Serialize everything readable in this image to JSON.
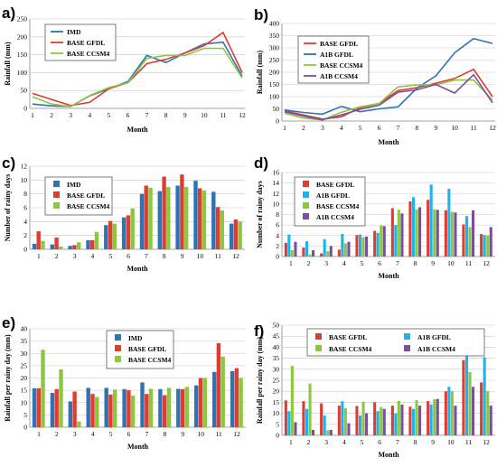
{
  "chart_data": [
    {
      "panel": "a)",
      "type": "line",
      "xlabel": "Month",
      "ylabel": "Rainfall (mm)",
      "x": [
        1,
        2,
        3,
        4,
        5,
        6,
        7,
        8,
        9,
        10,
        11,
        12
      ],
      "ylim": [
        0,
        250
      ],
      "yticks": [
        0,
        50,
        100,
        150,
        200,
        250
      ],
      "grid": true,
      "legend": "top-left",
      "series": [
        {
          "name": "IMD",
          "color": "#2e74b5",
          "values": [
            12,
            7,
            5,
            35,
            55,
            75,
            148,
            128,
            155,
            180,
            185,
            90
          ]
        },
        {
          "name": "BASE GFDL",
          "color": "#e03c31",
          "values": [
            42,
            25,
            8,
            17,
            55,
            72,
            125,
            137,
            155,
            175,
            212,
            100
          ]
        },
        {
          "name": "BASE CCSM4",
          "color": "#8dc63f",
          "values": [
            32,
            12,
            5,
            36,
            58,
            72,
            140,
            148,
            148,
            168,
            168,
            85
          ]
        }
      ]
    },
    {
      "panel": "b)",
      "type": "line",
      "xlabel": "Month",
      "ylabel": "Rainfall (mm)",
      "x": [
        1,
        2,
        3,
        4,
        5,
        6,
        7,
        8,
        9,
        10,
        11,
        12
      ],
      "ylim": [
        0,
        400
      ],
      "yticks": [
        0,
        50,
        100,
        150,
        200,
        250,
        300,
        350,
        400
      ],
      "grid": true,
      "legend": "top-left",
      "series": [
        {
          "name": "BASE GFDL",
          "color": "#e03c31",
          "values": [
            42,
            25,
            8,
            17,
            55,
            72,
            125,
            137,
            155,
            175,
            212,
            100
          ]
        },
        {
          "name": "A1B GFDL",
          "color": "#2e74b5",
          "values": [
            45,
            35,
            28,
            60,
            38,
            50,
            58,
            135,
            185,
            280,
            338,
            318
          ]
        },
        {
          "name": "BASE CCSM4",
          "color": "#8dc63f",
          "values": [
            32,
            12,
            5,
            36,
            58,
            72,
            140,
            148,
            148,
            168,
            168,
            85
          ]
        },
        {
          "name": "A1B CCSM4",
          "color": "#7b4fa0",
          "values": [
            38,
            20,
            5,
            25,
            48,
            65,
            118,
            128,
            150,
            115,
            190,
            75
          ]
        }
      ]
    },
    {
      "panel": "c)",
      "type": "bar",
      "xlabel": "Month",
      "ylabel": "Number of rainy days",
      "categories": [
        "1",
        "2",
        "3",
        "4",
        "5",
        "6",
        "7",
        "8",
        "9",
        "10",
        "11",
        "12"
      ],
      "ylim": [
        0,
        12
      ],
      "yticks": [
        0,
        2,
        4,
        6,
        8,
        10,
        12
      ],
      "grid": true,
      "legend": "top-left",
      "series": [
        {
          "name": "IMD",
          "color": "#2e74b5",
          "values": [
            0.8,
            0.7,
            0.5,
            1.3,
            3.5,
            4.6,
            8.0,
            8.4,
            9.2,
            9.9,
            8.3,
            3.7
          ]
        },
        {
          "name": "BASE GFDL",
          "color": "#e03c31",
          "values": [
            2.6,
            1.7,
            0.6,
            1.3,
            4.1,
            4.9,
            9.2,
            10.5,
            10.8,
            8.8,
            6.1,
            4.3
          ]
        },
        {
          "name": "BASE CCSM4",
          "color": "#8dc63f",
          "values": [
            1.2,
            0.4,
            1.0,
            2.5,
            3.7,
            5.9,
            8.9,
            9.0,
            9.0,
            8.5,
            5.6,
            4.0
          ]
        }
      ]
    },
    {
      "panel": "d)",
      "type": "bar",
      "xlabel": "Month",
      "ylabel": "Number of rainy days",
      "categories": [
        "1",
        "2",
        "3",
        "4",
        "5",
        "6",
        "7",
        "8",
        "9",
        "10",
        "11",
        "12"
      ],
      "ylim": [
        0,
        16
      ],
      "yticks": [
        0,
        2,
        4,
        6,
        8,
        10,
        12,
        14,
        16
      ],
      "grid": true,
      "legend": "top-left",
      "series": [
        {
          "name": "BASE GFDL",
          "color": "#e03c31",
          "values": [
            2.6,
            1.7,
            0.6,
            1.3,
            4.1,
            4.9,
            9.2,
            10.5,
            10.8,
            8.8,
            6.1,
            4.3
          ]
        },
        {
          "name": "A1B GFDL",
          "color": "#19b5f0",
          "values": [
            4.2,
            2.9,
            3.3,
            4.3,
            4.2,
            4.5,
            6.0,
            11.3,
            13.7,
            12.9,
            7.7,
            4.1
          ]
        },
        {
          "name": "BASE CCSM4",
          "color": "#8dc63f",
          "values": [
            1.2,
            0.4,
            1.0,
            2.5,
            3.7,
            5.9,
            8.9,
            9.0,
            9.0,
            8.5,
            5.6,
            4.0
          ]
        },
        {
          "name": "A1B CCSM4",
          "color": "#7b4fa0",
          "values": [
            2.8,
            1.2,
            2.0,
            2.8,
            3.8,
            5.8,
            8.2,
            9.4,
            8.9,
            8.4,
            8.8,
            5.6
          ]
        }
      ]
    },
    {
      "panel": "e)",
      "type": "bar",
      "xlabel": "Month",
      "ylabel": "Rainfall per rainy day (mm)",
      "categories": [
        "1",
        "2",
        "3",
        "4",
        "5",
        "6",
        "7",
        "8",
        "9",
        "10",
        "11",
        "12"
      ],
      "ylim": [
        0,
        40
      ],
      "yticks": [
        0,
        5,
        10,
        15,
        20,
        25,
        30,
        35,
        40
      ],
      "grid": true,
      "legend": "top-center",
      "series": [
        {
          "name": "IMD",
          "color": "#2e74b5",
          "values": [
            15.8,
            14.0,
            10.5,
            16.0,
            16.0,
            15.5,
            18.2,
            15.5,
            15.6,
            17.0,
            22.5,
            22.8
          ]
        },
        {
          "name": "BASE GFDL",
          "color": "#e03c31",
          "values": [
            15.8,
            15.5,
            14.5,
            13.5,
            13.3,
            15.0,
            13.5,
            13.0,
            15.5,
            20.0,
            34.2,
            24.0
          ]
        },
        {
          "name": "BASE CCSM4",
          "color": "#8dc63f",
          "values": [
            31.5,
            23.5,
            2.3,
            12.3,
            15.3,
            12.8,
            15.6,
            16.0,
            16.4,
            20.0,
            28.7,
            20.0
          ]
        }
      ]
    },
    {
      "panel": "f)",
      "type": "bar",
      "xlabel": "Month",
      "ylabel": "Rainfall per rainy day (mm)",
      "categories": [
        "1",
        "2",
        "3",
        "4",
        "5",
        "6",
        "7",
        "8",
        "9",
        "10",
        "11",
        "12"
      ],
      "ylim": [
        0,
        50
      ],
      "yticks": [
        0,
        5,
        10,
        15,
        20,
        25,
        30,
        35,
        40,
        45,
        50
      ],
      "grid": true,
      "legend": "top-left",
      "series": [
        {
          "name": "BASE GFDL",
          "color": "#e03c31",
          "values": [
            15.8,
            15.5,
            14.5,
            13.5,
            13.3,
            15.0,
            13.5,
            13.0,
            15.5,
            20.0,
            34.2,
            24.0
          ]
        },
        {
          "name": "A1B GFDL",
          "color": "#19b5f0",
          "values": [
            11.0,
            12.0,
            9.0,
            15.5,
            9.0,
            11.0,
            10.0,
            12.0,
            14.0,
            22.0,
            44.0,
            35.5
          ]
        },
        {
          "name": "BASE CCSM4",
          "color": "#8dc63f",
          "values": [
            31.5,
            23.5,
            2.3,
            12.3,
            15.3,
            12.8,
            15.6,
            16.0,
            16.4,
            20.0,
            28.7,
            20.0
          ]
        },
        {
          "name": "A1B CCSM4",
          "color": "#7b4fa0",
          "values": [
            6.0,
            2.5,
            2.5,
            5.5,
            10.0,
            12.0,
            14.0,
            13.5,
            16.5,
            13.5,
            22.0,
            13.5
          ]
        }
      ]
    }
  ]
}
